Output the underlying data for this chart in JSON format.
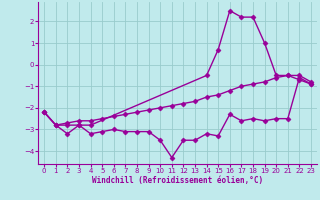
{
  "bg_color": "#c0eaec",
  "grid_color": "#99cccc",
  "line_color": "#990099",
  "marker": "D",
  "markersize": 2.5,
  "linewidth": 1.0,
  "xlabel": "Windchill (Refroidissement éolien,°C)",
  "xlim": [
    -0.5,
    23.5
  ],
  "ylim": [
    -4.6,
    2.9
  ],
  "yticks": [
    -4,
    -3,
    -2,
    -1,
    0,
    1,
    2
  ],
  "xticks": [
    0,
    1,
    2,
    3,
    4,
    5,
    6,
    7,
    8,
    9,
    10,
    11,
    12,
    13,
    14,
    15,
    16,
    17,
    18,
    19,
    20,
    21,
    22,
    23
  ],
  "series1_x": [
    0,
    1,
    2,
    3,
    4,
    5,
    6,
    7,
    8,
    9,
    10,
    11,
    12,
    13,
    14,
    15,
    16,
    17,
    18,
    19,
    20,
    21,
    22,
    23
  ],
  "series1_y": [
    -2.2,
    -2.8,
    -3.2,
    -2.8,
    -3.2,
    -3.1,
    -3.0,
    -3.1,
    -3.1,
    -3.1,
    -3.5,
    -4.3,
    -3.5,
    -3.5,
    -3.2,
    -3.3,
    -2.3,
    -2.6,
    -2.5,
    -2.6,
    -2.5,
    -2.5,
    -0.6,
    -0.9
  ],
  "series2_x": [
    0,
    1,
    2,
    3,
    4,
    5,
    6,
    7,
    8,
    9,
    10,
    11,
    12,
    13,
    14,
    15,
    16,
    17,
    18,
    19,
    20,
    21,
    22,
    23
  ],
  "series2_y": [
    -2.2,
    -2.8,
    -2.7,
    -2.6,
    -2.6,
    -2.5,
    -2.4,
    -2.3,
    -2.2,
    -2.1,
    -2.0,
    -1.9,
    -1.8,
    -1.7,
    -1.5,
    -1.4,
    -1.2,
    -1.0,
    -0.9,
    -0.8,
    -0.6,
    -0.5,
    -0.7,
    -0.9
  ],
  "series3_x": [
    0,
    1,
    2,
    3,
    4,
    14,
    15,
    16,
    17,
    18,
    19,
    20,
    21,
    22,
    23
  ],
  "series3_y": [
    -2.2,
    -2.8,
    -2.8,
    -2.8,
    -2.8,
    -0.5,
    0.7,
    2.5,
    2.2,
    2.2,
    1.0,
    -0.5,
    -0.5,
    -0.5,
    -0.8
  ]
}
